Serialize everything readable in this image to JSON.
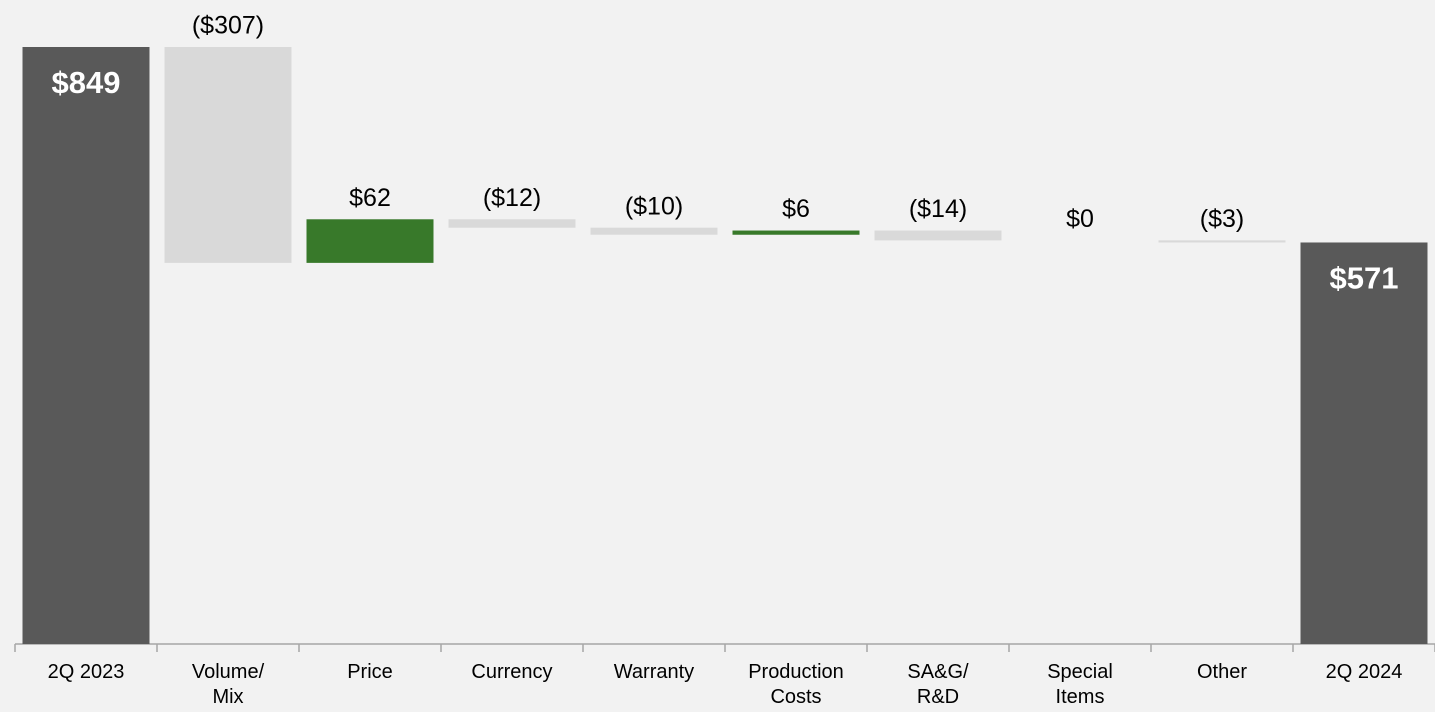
{
  "chart_data": {
    "type": "waterfall",
    "categories": [
      "2Q 2023",
      "Volume/\nMix",
      "Price",
      "Currency",
      "Warranty",
      "Production\nCosts",
      "SA&G/\nR&D",
      "Special\nItems",
      "Other",
      "2Q 2024"
    ],
    "values": [
      849,
      -307,
      62,
      -12,
      -10,
      6,
      -14,
      0,
      -3,
      571
    ],
    "value_labels": [
      "$849",
      "($307)",
      "$62",
      "($12)",
      "($10)",
      "$6",
      "($14)",
      "$0",
      "($3)",
      "$571"
    ],
    "colors": {
      "total": "#595959",
      "increase": "#38792a",
      "decrease": "#d9d9d9"
    }
  }
}
